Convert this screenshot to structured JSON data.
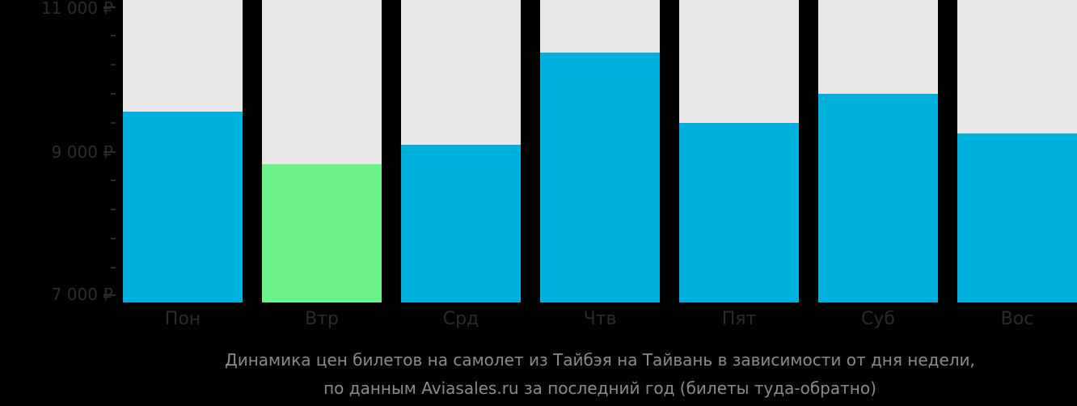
{
  "chart_data": {
    "type": "bar",
    "title": "Динамика цен билетов на самолет из Тайбэя на Тайвань в зависимости от дня недели,",
    "subtitle": "по данным Aviasales.ru за последний год (билеты туда-обратно)",
    "xlabel": "",
    "ylabel": "",
    "categories": [
      "Пон",
      "Втр",
      "Срд",
      "Чтв",
      "Пят",
      "Суб",
      "Вос"
    ],
    "values": [
      9550,
      8820,
      9090,
      10370,
      9390,
      9790,
      9240
    ],
    "highlight_index": 1,
    "ylim": [
      7000,
      11000
    ],
    "yticks": [
      "11 000 ₽",
      "9 000 ₽",
      "7 000 ₽"
    ],
    "grid": false,
    "colors": {
      "bar": "#00b0dc",
      "highlight": "#6cf28a",
      "track": "#e8e8e8",
      "background": "#000000"
    }
  },
  "axis": {
    "y_top": "11 000 ₽",
    "y_mid": "9 000 ₽",
    "y_bottom": "7 000 ₽"
  },
  "days": [
    "Пон",
    "Втр",
    "Срд",
    "Чтв",
    "Пят",
    "Суб",
    "Вос"
  ],
  "caption": {
    "line1": "Динамика цен билетов на самолет из Тайбэя на Тайвань в зависимости от дня недели,",
    "line2": "по данным Aviasales.ru за последний год (билеты туда-обратно)"
  }
}
